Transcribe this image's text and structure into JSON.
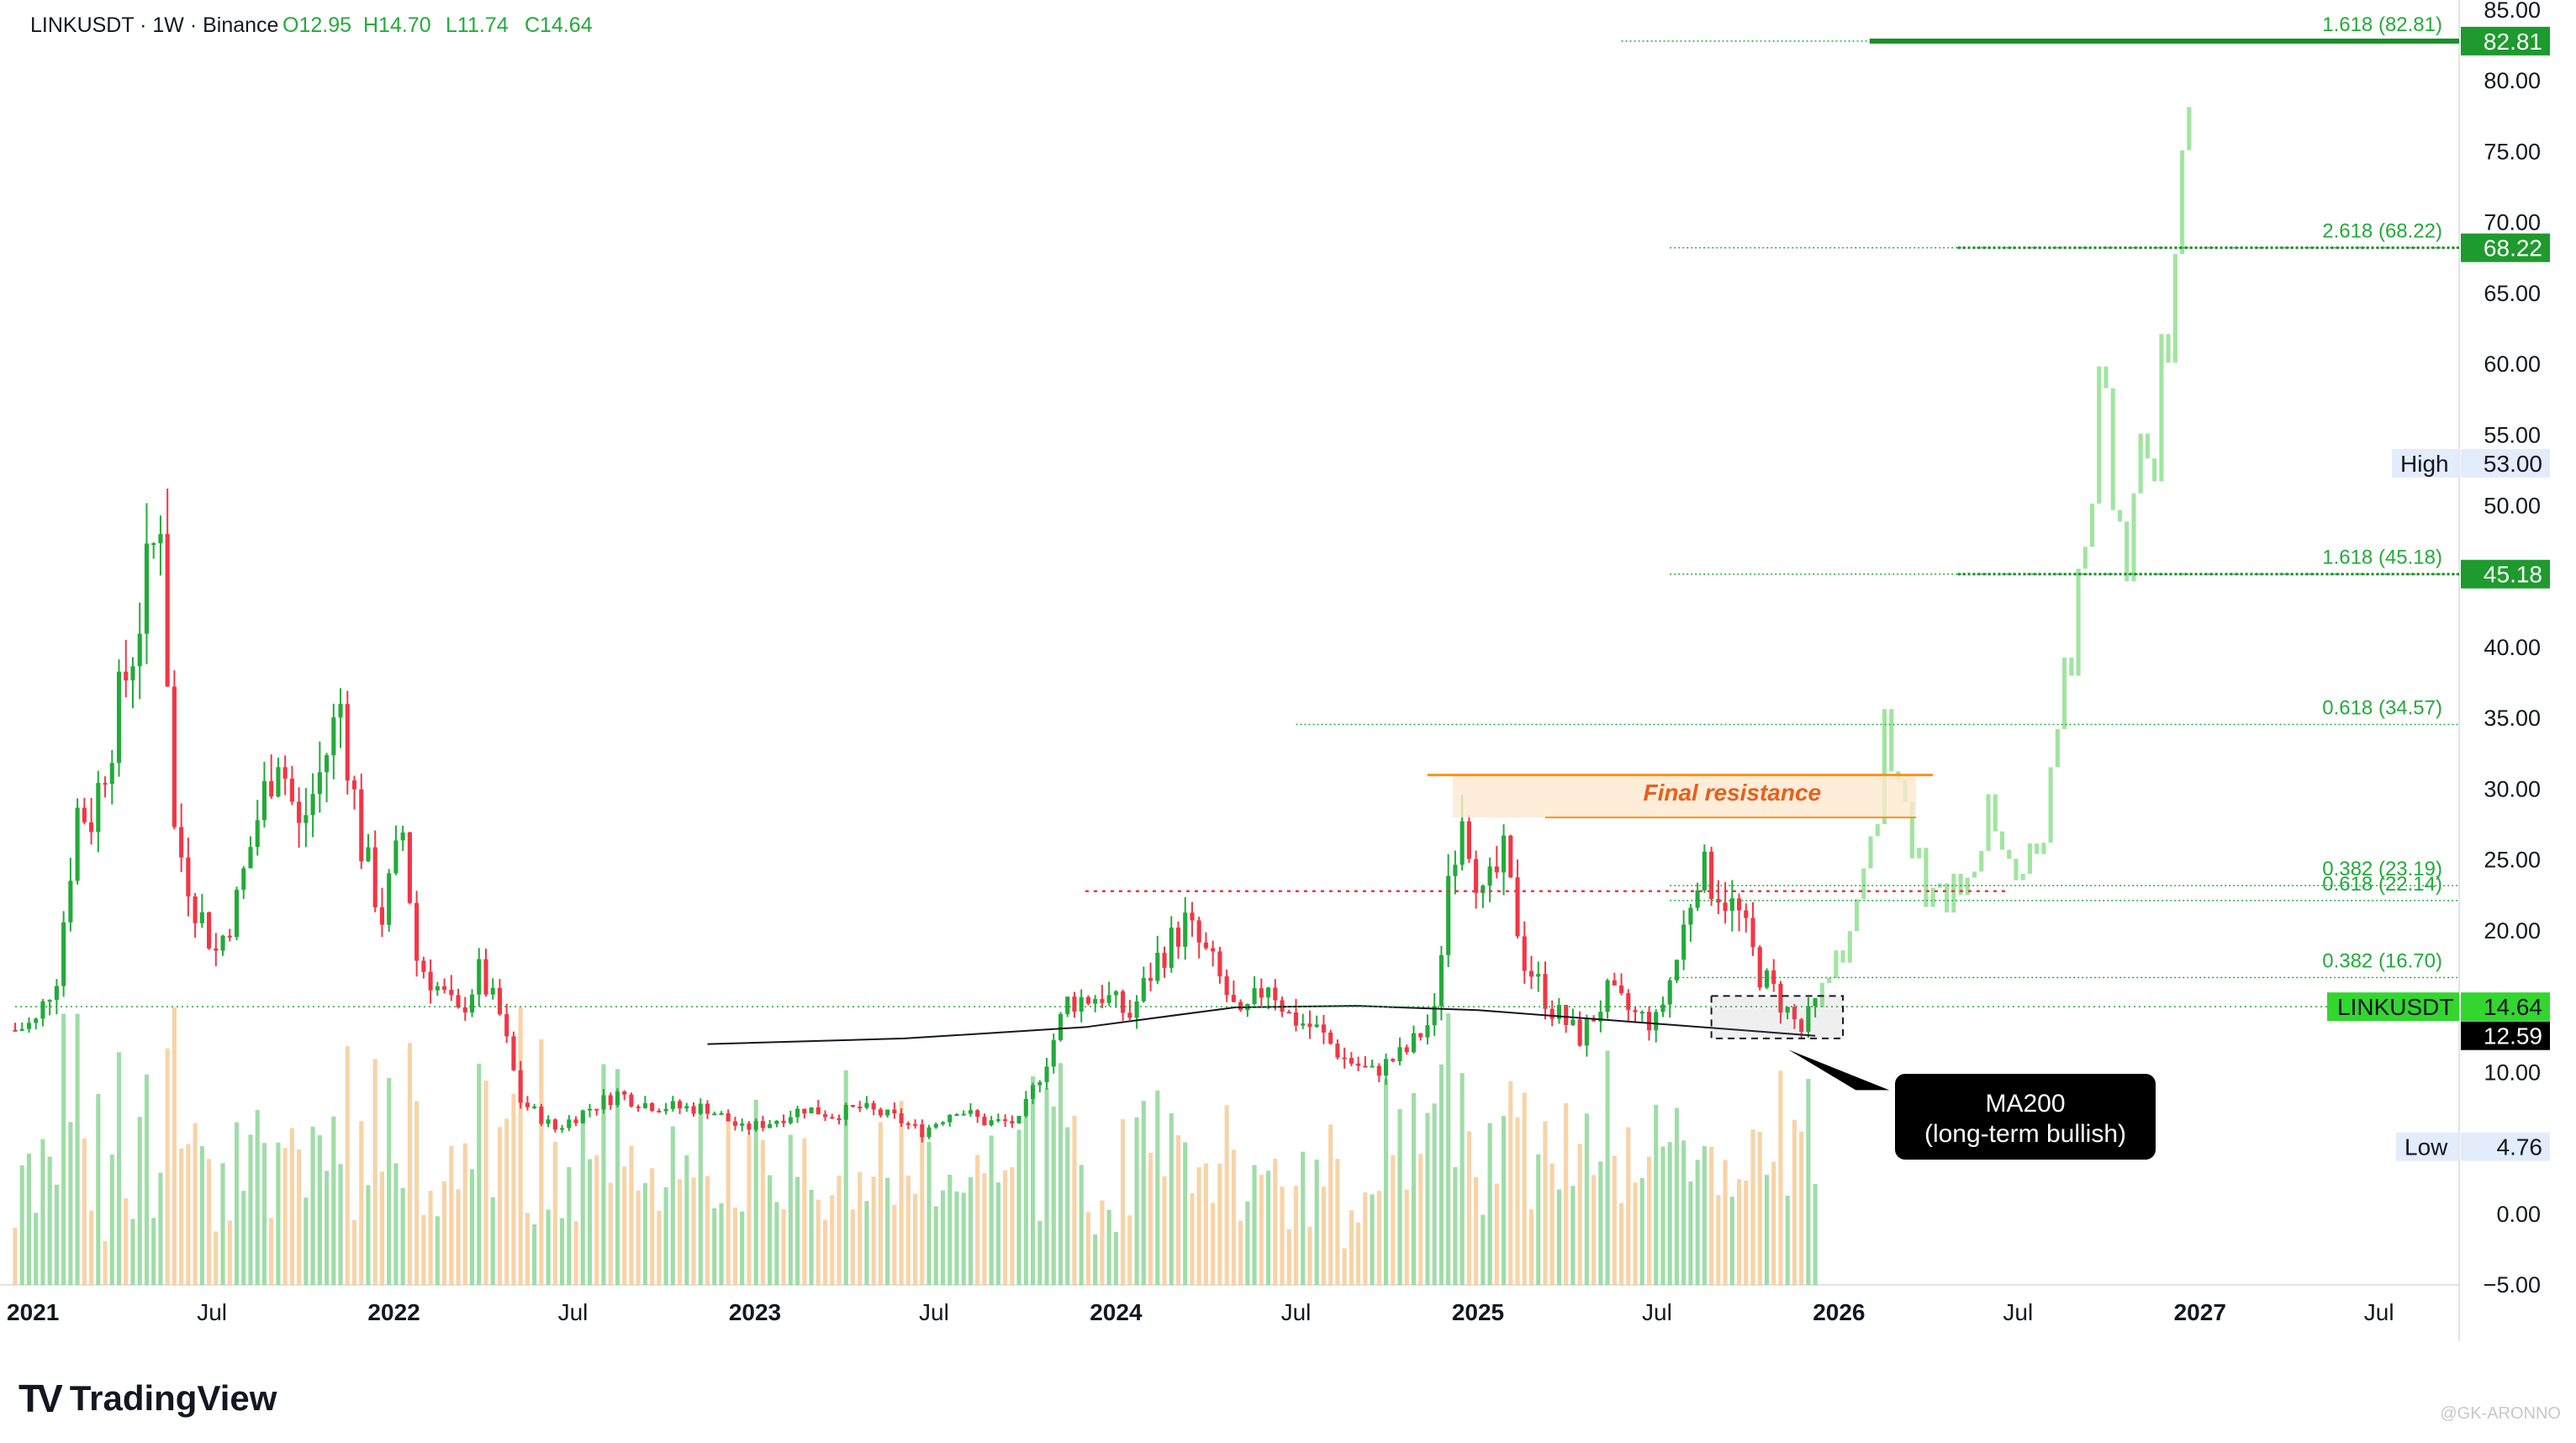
{
  "header": {
    "symbol": "LINKUSDT",
    "timeframe": "1W",
    "exchange": "Binance",
    "open": "O12.95",
    "high": "H14.70",
    "low": "L11.74",
    "close": "C14.64"
  },
  "branding": {
    "name": "TradingView",
    "watermark": "@GK-ARONNO"
  },
  "colors": {
    "up": "#22ab3a",
    "down": "#f23645",
    "projection": "#8fe08f",
    "fib": "#22ab3a",
    "resistance": "#f7931a",
    "ma200": "#131722",
    "volume_up": "#7fd18a",
    "volume_down": "#f6c48a"
  },
  "price_labels": {
    "fib_8281": "82.81",
    "fib_6822": "68.22",
    "high_label": "High",
    "high_value": "53.00",
    "fib_4518": "45.18",
    "last_symbol": "LINKUSDT",
    "last_value": "14.64",
    "ma_value": "12.59",
    "low_label": "Low",
    "low_value": "4.76"
  },
  "annotations": {
    "final_resistance": "Final resistance",
    "ma200_line1": "MA200",
    "ma200_line2": "(long-term bullish)"
  },
  "chart_data": {
    "type": "candlestick",
    "title": "LINKUSDT · 1W · Binance",
    "x_range": [
      "2020-12-14",
      "2027-09-20"
    ],
    "ylim": [
      -5,
      85
    ],
    "y_ticks": [
      -5,
      0,
      5,
      10,
      15,
      20,
      25,
      30,
      35,
      40,
      45,
      50,
      55,
      60,
      65,
      70,
      75,
      80,
      85
    ],
    "y_tick_labels": [
      "−5.00",
      "0.00",
      "",
      "10.00",
      "",
      "20.00",
      "25.00",
      "30.00",
      "35.00",
      "40.00",
      "",
      "50.00",
      "55.00",
      "60.00",
      "65.00",
      "70.00",
      "75.00",
      "80.00",
      "85.00"
    ],
    "x_ticks": [
      {
        "date": "2021-01-01",
        "label": "2021",
        "bold": true
      },
      {
        "date": "2021-07-01",
        "label": "Jul",
        "bold": false
      },
      {
        "date": "2022-01-01",
        "label": "2022",
        "bold": true
      },
      {
        "date": "2022-07-01",
        "label": "Jul",
        "bold": false
      },
      {
        "date": "2023-01-01",
        "label": "2023",
        "bold": true
      },
      {
        "date": "2023-07-01",
        "label": "Jul",
        "bold": false
      },
      {
        "date": "2024-01-01",
        "label": "2024",
        "bold": true
      },
      {
        "date": "2024-07-01",
        "label": "Jul",
        "bold": false
      },
      {
        "date": "2025-01-01",
        "label": "2025",
        "bold": true
      },
      {
        "date": "2025-07-01",
        "label": "Jul",
        "bold": false
      },
      {
        "date": "2026-01-01",
        "label": "2026",
        "bold": true
      },
      {
        "date": "2026-07-01",
        "label": "Jul",
        "bold": false
      },
      {
        "date": "2027-01-01",
        "label": "2027",
        "bold": true
      },
      {
        "date": "2027-07-01",
        "label": "Jul",
        "bold": false
      }
    ],
    "price_path": [
      [
        "2020-12-14",
        13.0
      ],
      [
        "2021-01-04",
        13.5
      ],
      [
        "2021-01-25",
        17.0
      ],
      [
        "2021-02-15",
        28.5
      ],
      [
        "2021-03-01",
        28.0
      ],
      [
        "2021-03-22",
        34.0
      ],
      [
        "2021-04-12",
        40.0
      ],
      [
        "2021-05-03",
        47.0
      ],
      [
        "2021-05-10",
        50.0
      ],
      [
        "2021-05-24",
        27.0
      ],
      [
        "2021-06-14",
        22.0
      ],
      [
        "2021-07-05",
        18.5
      ],
      [
        "2021-07-26",
        22.0
      ],
      [
        "2021-08-16",
        28.0
      ],
      [
        "2021-09-06",
        33.0
      ],
      [
        "2021-09-27",
        27.0
      ],
      [
        "2021-10-18",
        31.0
      ],
      [
        "2021-11-08",
        36.0
      ],
      [
        "2021-11-29",
        26.0
      ],
      [
        "2021-12-20",
        21.0
      ],
      [
        "2022-01-10",
        27.0
      ],
      [
        "2022-01-24",
        18.0
      ],
      [
        "2022-02-14",
        16.0
      ],
      [
        "2022-03-07",
        14.0
      ],
      [
        "2022-03-28",
        17.0
      ],
      [
        "2022-04-18",
        14.0
      ],
      [
        "2022-05-09",
        8.0
      ],
      [
        "2022-06-13",
        6.0
      ],
      [
        "2022-07-18",
        7.5
      ],
      [
        "2022-08-15",
        8.5
      ],
      [
        "2022-09-12",
        7.8
      ],
      [
        "2022-10-17",
        7.5
      ],
      [
        "2022-11-14",
        7.5
      ],
      [
        "2022-12-19",
        6.0
      ],
      [
        "2023-01-16",
        6.5
      ],
      [
        "2023-02-20",
        7.5
      ],
      [
        "2023-03-20",
        7.0
      ],
      [
        "2023-04-17",
        7.5
      ],
      [
        "2023-05-22",
        6.8
      ],
      [
        "2023-06-19",
        5.8
      ],
      [
        "2023-07-24",
        7.5
      ],
      [
        "2023-08-21",
        6.5
      ],
      [
        "2023-09-25",
        6.5
      ],
      [
        "2023-10-23",
        11.0
      ],
      [
        "2023-11-13",
        15.0
      ],
      [
        "2023-12-18",
        15.5
      ],
      [
        "2024-01-15",
        14.0
      ],
      [
        "2024-02-12",
        18.0
      ],
      [
        "2024-03-11",
        20.5
      ],
      [
        "2024-04-08",
        17.5
      ],
      [
        "2024-05-06",
        13.5
      ],
      [
        "2024-06-03",
        16.5
      ],
      [
        "2024-06-24",
        14.0
      ],
      [
        "2024-07-22",
        13.0
      ],
      [
        "2024-08-19",
        11.0
      ],
      [
        "2024-09-16",
        10.0
      ],
      [
        "2024-10-21",
        11.5
      ],
      [
        "2024-11-18",
        14.0
      ],
      [
        "2024-12-02",
        24.0
      ],
      [
        "2024-12-16",
        29.0
      ],
      [
        "2025-01-06",
        22.0
      ],
      [
        "2025-01-27",
        25.0
      ],
      [
        "2025-02-17",
        18.0
      ],
      [
        "2025-03-17",
        14.5
      ],
      [
        "2025-04-14",
        12.5
      ],
      [
        "2025-05-12",
        15.5
      ],
      [
        "2025-06-09",
        14.0
      ],
      [
        "2025-06-30",
        13.5
      ],
      [
        "2025-07-21",
        18.0
      ],
      [
        "2025-08-11",
        24.5
      ],
      [
        "2025-09-01",
        23.0
      ],
      [
        "2025-09-22",
        21.0
      ],
      [
        "2025-10-13",
        17.0
      ],
      [
        "2025-11-03",
        15.0
      ],
      [
        "2025-11-24",
        12.9
      ],
      [
        "2025-12-08",
        14.64
      ]
    ],
    "ma200": [
      [
        "2022-11-14",
        12.0
      ],
      [
        "2023-06-01",
        12.4
      ],
      [
        "2023-12-01",
        13.2
      ],
      [
        "2024-05-01",
        14.6
      ],
      [
        "2024-09-01",
        14.7
      ],
      [
        "2025-01-01",
        14.4
      ],
      [
        "2025-06-01",
        13.6
      ],
      [
        "2025-12-08",
        12.59
      ]
    ],
    "projection": [
      [
        "2025-12-08",
        14.6
      ],
      [
        "2026-01-05",
        18.5
      ],
      [
        "2026-02-02",
        25.0
      ],
      [
        "2026-02-16",
        34.0
      ],
      [
        "2026-03-09",
        28.0
      ],
      [
        "2026-04-06",
        22.0
      ],
      [
        "2026-05-04",
        24.0
      ],
      [
        "2026-06-01",
        27.5
      ],
      [
        "2026-06-29",
        23.0
      ],
      [
        "2026-07-27",
        26.0
      ],
      [
        "2026-08-24",
        40.0
      ],
      [
        "2026-09-21",
        58.0
      ],
      [
        "2026-10-19",
        48.0
      ],
      [
        "2026-11-16",
        56.0
      ],
      [
        "2026-12-07",
        65.0
      ],
      [
        "2026-12-21",
        83.0
      ]
    ],
    "fib_levels": [
      {
        "label": "1.618 (82.81)",
        "value": 82.81
      },
      {
        "label": "2.618 (68.22)",
        "value": 68.22
      },
      {
        "label": "1.618 (45.18)",
        "value": 45.18
      },
      {
        "label": "0.618 (34.57)",
        "value": 34.57
      },
      {
        "label": "0.382 (23.19)",
        "value": 23.19
      },
      {
        "label": "0.618 (22.14)",
        "value": 22.14
      },
      {
        "label": "0.382 (16.70)",
        "value": 16.7
      }
    ],
    "resistance": {
      "upper": 31.0,
      "lower": 28.0,
      "red_dotted": 22.8,
      "label": "Final resistance"
    },
    "current_price": 14.64,
    "ma200_value": 12.59,
    "high": 53.0,
    "low": 4.76
  }
}
